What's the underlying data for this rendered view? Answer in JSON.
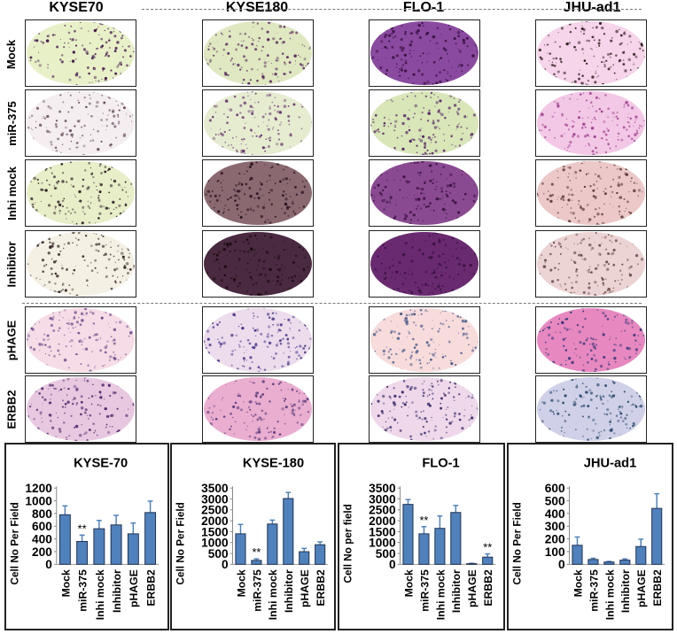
{
  "columns": [
    "KYSE70",
    "KYSE180",
    "FLO-1",
    "JHU-ad1"
  ],
  "rows": [
    "Mock",
    "miR-375",
    "Inhi mock",
    "Inhibitor",
    "pHAGE",
    "ERBB2"
  ],
  "image_colors": [
    [
      [
        "#e8f0c8",
        "#4a1f52"
      ],
      [
        "#dfe8c0",
        "#5a2a62"
      ],
      [
        "#8a4aa0",
        "#3a1040"
      ],
      [
        "#f6d4ea",
        "#2a1a1a"
      ]
    ],
    [
      [
        "#f4eef0",
        "#6a5060"
      ],
      [
        "#e6ecd0",
        "#6a3a70"
      ],
      [
        "#d8e6b8",
        "#5a2a6a"
      ],
      [
        "#f3c8e6",
        "#9a3a8a"
      ]
    ],
    [
      [
        "#e8eec8",
        "#2a1a20"
      ],
      [
        "#8a6a70",
        "#2a1020"
      ],
      [
        "#8a4a92",
        "#3a1040"
      ],
      [
        "#ecc8c8",
        "#5a3a3a"
      ]
    ],
    [
      [
        "#f4f0e4",
        "#3a2a2a"
      ],
      [
        "#4a2a40",
        "#1a0a10"
      ],
      [
        "#6a2a70",
        "#3a1040"
      ],
      [
        "#ecd4d4",
        "#6a4a4a"
      ]
    ],
    [
      [
        "#f6dce6",
        "#6a4a8a"
      ],
      [
        "#ecdcec",
        "#4a3a8a"
      ],
      [
        "#f8dcdc",
        "#4a5a8a"
      ],
      [
        "#e888c0",
        "#3a3a7a"
      ]
    ],
    [
      [
        "#e8c8e0",
        "#4a2a6a"
      ],
      [
        "#eaaed0",
        "#5a3a7a"
      ],
      [
        "#eed8ea",
        "#3a2a6a"
      ],
      [
        "#d0d0e8",
        "#2a4a6a"
      ]
    ]
  ],
  "bar_color": "#4f81bd",
  "chart_data": [
    {
      "type": "bar",
      "title": "KYSE-70",
      "ylabel": "Cell No Per Field",
      "categories": [
        "Mock",
        "miR-375",
        "Inhi mock",
        "Inhibitor",
        "pHAGE",
        "ERBB2"
      ],
      "values": [
        780,
        360,
        560,
        620,
        480,
        815
      ],
      "errors": [
        140,
        100,
        130,
        150,
        170,
        180
      ],
      "significance": [
        "",
        "**",
        "",
        "",
        "",
        ""
      ],
      "ylim": [
        0,
        1200
      ],
      "yticks": [
        "0",
        "200",
        "400",
        "600",
        "800",
        "1000",
        "1200"
      ]
    },
    {
      "type": "bar",
      "title": "KYSE-180",
      "ylabel": "Cell No Per Field",
      "categories": [
        "Mock",
        "miR-375",
        "Inhi mock",
        "Inhibitor",
        "pHAGE",
        "ERBB2"
      ],
      "values": [
        1400,
        180,
        1850,
        3020,
        580,
        900
      ],
      "errors": [
        430,
        70,
        180,
        280,
        150,
        130
      ],
      "significance": [
        "",
        "**",
        "",
        "",
        "",
        ""
      ],
      "ylim": [
        0,
        3500
      ],
      "yticks": [
        "0",
        "500",
        "1000",
        "1500",
        "2000",
        "2500",
        "3000",
        "3500"
      ]
    },
    {
      "type": "bar",
      "title": "FLO-1",
      "ylabel": "Cell No per field",
      "categories": [
        "Mock",
        "miR-375",
        "Inhi mock",
        "Inhibitor",
        "pHAGE",
        "ERBB2"
      ],
      "values": [
        2750,
        1400,
        1650,
        2380,
        30,
        330
      ],
      "errors": [
        220,
        330,
        570,
        320,
        20,
        150
      ],
      "significance": [
        "",
        "**",
        "",
        "",
        "",
        "**"
      ],
      "ylim": [
        0,
        3500
      ],
      "yticks": [
        "0",
        "500",
        "1000",
        "1500",
        "2000",
        "2500",
        "3000",
        "3500"
      ]
    },
    {
      "type": "bar",
      "title": "JHU-ad1",
      "ylabel": "Cell No Per Field",
      "categories": [
        "Mock",
        "miR-375",
        "Inhi mock",
        "Inhibitor",
        "pHAGE",
        "ERBB2"
      ],
      "values": [
        150,
        38,
        18,
        33,
        140,
        440
      ],
      "errors": [
        65,
        10,
        5,
        10,
        58,
        115
      ],
      "significance": [
        "",
        "",
        "",
        "",
        "",
        ""
      ],
      "ylim": [
        0,
        600
      ],
      "yticks": [
        "0",
        "100",
        "200",
        "300",
        "400",
        "500",
        "600"
      ]
    }
  ]
}
